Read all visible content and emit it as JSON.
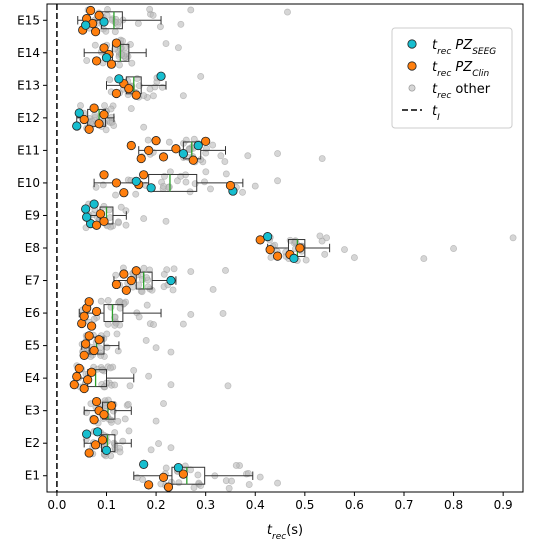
{
  "chart_data": {
    "type": "box-scatter",
    "orientation": "horizontal",
    "xlabel": {
      "main": "t",
      "sub": "rec",
      "rest": "(s)"
    },
    "xlim": [
      -0.02,
      0.94
    ],
    "xticks": [
      0.0,
      0.1,
      0.2,
      0.3,
      0.4,
      0.5,
      0.6,
      0.7,
      0.8,
      0.9
    ],
    "xtick_labels": [
      "0.0",
      "0.1",
      "0.2",
      "0.3",
      "0.4",
      "0.5",
      "0.6",
      "0.7",
      "0.8",
      "0.9"
    ],
    "categories": [
      "E1",
      "E2",
      "E3",
      "E4",
      "E5",
      "E6",
      "E7",
      "E8",
      "E9",
      "E10",
      "E11",
      "E12",
      "E13",
      "E14",
      "E15"
    ],
    "grid": false,
    "legend_position": "top-right",
    "t_I": 0.0,
    "colors": {
      "pz_seeg": "#17becf",
      "pz_clin": "#ff7f0e",
      "other": "#bbbbbb",
      "median": "#2ca02c",
      "box": "#333333",
      "t_I": "#000000"
    },
    "legend": [
      {
        "key": "pz_seeg",
        "main": "t",
        "sub": "rec",
        "rest": " PZ",
        "rest_sub": "SEEG"
      },
      {
        "key": "pz_clin",
        "main": "t",
        "sub": "rec",
        "rest": " PZ",
        "rest_sub": "Clin"
      },
      {
        "key": "other",
        "main": "t",
        "sub": "rec",
        "rest": " other",
        "rest_sub": ""
      },
      {
        "key": "t_I",
        "main": "t",
        "sub": "I",
        "rest": "",
        "rest_sub": ""
      }
    ],
    "boxes": [
      {
        "name": "E1",
        "whislo": 0.155,
        "q1": 0.232,
        "med": 0.262,
        "q3": 0.298,
        "whishi": 0.395
      },
      {
        "name": "E2",
        "whislo": 0.055,
        "q1": 0.09,
        "med": 0.102,
        "q3": 0.117,
        "whishi": 0.15
      },
      {
        "name": "E3",
        "whislo": 0.055,
        "q1": 0.092,
        "med": 0.103,
        "q3": 0.117,
        "whishi": 0.15
      },
      {
        "name": "E4",
        "whislo": 0.04,
        "q1": 0.062,
        "med": 0.078,
        "q3": 0.1,
        "whishi": 0.155
      },
      {
        "name": "E5",
        "whislo": 0.05,
        "q1": 0.065,
        "med": 0.08,
        "q3": 0.095,
        "whishi": 0.125
      },
      {
        "name": "E6",
        "whislo": 0.045,
        "q1": 0.095,
        "med": 0.112,
        "q3": 0.133,
        "whishi": 0.21
      },
      {
        "name": "E7",
        "whislo": 0.115,
        "q1": 0.16,
        "med": 0.175,
        "q3": 0.192,
        "whishi": 0.24
      },
      {
        "name": "E8",
        "whislo": 0.425,
        "q1": 0.467,
        "med": 0.485,
        "q3": 0.5,
        "whishi": 0.55
      },
      {
        "name": "E9",
        "whislo": 0.055,
        "q1": 0.087,
        "med": 0.1,
        "q3": 0.113,
        "whishi": 0.14
      },
      {
        "name": "E10",
        "whislo": 0.075,
        "q1": 0.185,
        "med": 0.228,
        "q3": 0.282,
        "whishi": 0.375
      },
      {
        "name": "E11",
        "whislo": 0.165,
        "q1": 0.255,
        "med": 0.272,
        "q3": 0.29,
        "whishi": 0.34
      },
      {
        "name": "E12",
        "whislo": 0.04,
        "q1": 0.062,
        "med": 0.085,
        "q3": 0.098,
        "whishi": 0.115
      },
      {
        "name": "E13",
        "whislo": 0.1,
        "q1": 0.14,
        "med": 0.155,
        "q3": 0.17,
        "whishi": 0.22
      },
      {
        "name": "E14",
        "whislo": 0.055,
        "q1": 0.112,
        "med": 0.128,
        "q3": 0.145,
        "whishi": 0.18
      },
      {
        "name": "E15",
        "whislo": 0.042,
        "q1": 0.09,
        "med": 0.115,
        "q3": 0.132,
        "whishi": 0.21
      }
    ],
    "highlighted_points": [
      {
        "cat": "E1",
        "x": 0.185,
        "s": 0.28,
        "g": "pz_clin"
      },
      {
        "cat": "E1",
        "x": 0.215,
        "s": 0.05,
        "g": "pz_clin"
      },
      {
        "cat": "E1",
        "x": 0.225,
        "s": 0.35,
        "g": "pz_clin"
      },
      {
        "cat": "E1",
        "x": 0.255,
        "s": -0.05,
        "g": "pz_clin"
      },
      {
        "cat": "E1",
        "x": 0.175,
        "s": -0.35,
        "g": "pz_seeg"
      },
      {
        "cat": "E1",
        "x": 0.245,
        "s": -0.25,
        "g": "pz_seeg"
      },
      {
        "cat": "E2",
        "x": 0.065,
        "s": 0.3,
        "g": "pz_clin"
      },
      {
        "cat": "E2",
        "x": 0.078,
        "s": 0.05,
        "g": "pz_clin"
      },
      {
        "cat": "E2",
        "x": 0.092,
        "s": -0.1,
        "g": "pz_clin"
      },
      {
        "cat": "E2",
        "x": 0.06,
        "s": -0.28,
        "g": "pz_seeg"
      },
      {
        "cat": "E2",
        "x": 0.082,
        "s": -0.35,
        "g": "pz_seeg"
      },
      {
        "cat": "E2",
        "x": 0.1,
        "s": 0.22,
        "g": "pz_seeg"
      },
      {
        "cat": "E3",
        "x": 0.075,
        "s": 0.28,
        "g": "pz_clin"
      },
      {
        "cat": "E3",
        "x": 0.085,
        "s": 0.0,
        "g": "pz_clin"
      },
      {
        "cat": "E3",
        "x": 0.08,
        "s": -0.28,
        "g": "pz_clin"
      },
      {
        "cat": "E3",
        "x": 0.095,
        "s": 0.12,
        "g": "pz_clin"
      },
      {
        "cat": "E3",
        "x": 0.11,
        "s": -0.15,
        "g": "pz_clin"
      },
      {
        "cat": "E4",
        "x": 0.035,
        "s": 0.2,
        "g": "pz_clin"
      },
      {
        "cat": "E4",
        "x": 0.04,
        "s": -0.05,
        "g": "pz_clin"
      },
      {
        "cat": "E4",
        "x": 0.045,
        "s": -0.3,
        "g": "pz_clin"
      },
      {
        "cat": "E4",
        "x": 0.055,
        "s": 0.32,
        "g": "pz_clin"
      },
      {
        "cat": "E4",
        "x": 0.062,
        "s": 0.05,
        "g": "pz_clin"
      },
      {
        "cat": "E4",
        "x": 0.07,
        "s": -0.18,
        "g": "pz_clin"
      },
      {
        "cat": "E5",
        "x": 0.055,
        "s": 0.3,
        "g": "pz_clin"
      },
      {
        "cat": "E5",
        "x": 0.058,
        "s": -0.05,
        "g": "pz_clin"
      },
      {
        "cat": "E5",
        "x": 0.065,
        "s": -0.3,
        "g": "pz_clin"
      },
      {
        "cat": "E5",
        "x": 0.075,
        "s": 0.15,
        "g": "pz_clin"
      },
      {
        "cat": "E5",
        "x": 0.085,
        "s": -0.18,
        "g": "pz_clin"
      },
      {
        "cat": "E6",
        "x": 0.05,
        "s": 0.32,
        "g": "pz_clin"
      },
      {
        "cat": "E6",
        "x": 0.055,
        "s": 0.1,
        "g": "pz_clin"
      },
      {
        "cat": "E6",
        "x": 0.06,
        "s": -0.15,
        "g": "pz_clin"
      },
      {
        "cat": "E6",
        "x": 0.065,
        "s": -0.35,
        "g": "pz_clin"
      },
      {
        "cat": "E6",
        "x": 0.07,
        "s": 0.4,
        "g": "pz_clin"
      },
      {
        "cat": "E6",
        "x": 0.08,
        "s": -0.05,
        "g": "pz_clin"
      },
      {
        "cat": "E7",
        "x": 0.12,
        "s": 0.12,
        "g": "pz_clin"
      },
      {
        "cat": "E7",
        "x": 0.135,
        "s": -0.2,
        "g": "pz_clin"
      },
      {
        "cat": "E7",
        "x": 0.14,
        "s": 0.3,
        "g": "pz_clin"
      },
      {
        "cat": "E7",
        "x": 0.15,
        "s": 0.0,
        "g": "pz_clin"
      },
      {
        "cat": "E7",
        "x": 0.16,
        "s": -0.3,
        "g": "pz_clin"
      },
      {
        "cat": "E7",
        "x": 0.23,
        "s": 0.0,
        "g": "pz_seeg"
      },
      {
        "cat": "E8",
        "x": 0.41,
        "s": -0.25,
        "g": "pz_clin"
      },
      {
        "cat": "E8",
        "x": 0.43,
        "s": 0.05,
        "g": "pz_clin"
      },
      {
        "cat": "E8",
        "x": 0.445,
        "s": 0.25,
        "g": "pz_clin"
      },
      {
        "cat": "E8",
        "x": 0.47,
        "s": 0.2,
        "g": "pz_clin"
      },
      {
        "cat": "E8",
        "x": 0.49,
        "s": 0.0,
        "g": "pz_clin"
      },
      {
        "cat": "E8",
        "x": 0.425,
        "s": -0.35,
        "g": "pz_seeg"
      },
      {
        "cat": "E8",
        "x": 0.478,
        "s": 0.32,
        "g": "pz_seeg"
      },
      {
        "cat": "E9",
        "x": 0.068,
        "s": 0.25,
        "g": "pz_seeg"
      },
      {
        "cat": "E9",
        "x": 0.06,
        "s": 0.05,
        "g": "pz_seeg"
      },
      {
        "cat": "E9",
        "x": 0.058,
        "s": -0.2,
        "g": "pz_seeg"
      },
      {
        "cat": "E9",
        "x": 0.075,
        "s": -0.35,
        "g": "pz_seeg"
      },
      {
        "cat": "E9",
        "x": 0.08,
        "s": 0.3,
        "g": "pz_clin"
      },
      {
        "cat": "E9",
        "x": 0.088,
        "s": -0.05,
        "g": "pz_clin"
      },
      {
        "cat": "E9",
        "x": 0.095,
        "s": 0.18,
        "g": "pz_clin"
      },
      {
        "cat": "E10",
        "x": 0.095,
        "s": -0.25,
        "g": "pz_clin"
      },
      {
        "cat": "E10",
        "x": 0.12,
        "s": 0.0,
        "g": "pz_clin"
      },
      {
        "cat": "E10",
        "x": 0.135,
        "s": 0.3,
        "g": "pz_clin"
      },
      {
        "cat": "E10",
        "x": 0.165,
        "s": 0.05,
        "g": "pz_clin"
      },
      {
        "cat": "E10",
        "x": 0.175,
        "s": -0.25,
        "g": "pz_clin"
      },
      {
        "cat": "E10",
        "x": 0.16,
        "s": -0.05,
        "g": "pz_seeg"
      },
      {
        "cat": "E10",
        "x": 0.19,
        "s": 0.15,
        "g": "pz_seeg"
      },
      {
        "cat": "E10",
        "x": 0.355,
        "s": 0.25,
        "g": "pz_seeg"
      },
      {
        "cat": "E10",
        "x": 0.35,
        "s": 0.08,
        "g": "pz_clin"
      },
      {
        "cat": "E11",
        "x": 0.15,
        "s": -0.15,
        "g": "pz_clin"
      },
      {
        "cat": "E11",
        "x": 0.17,
        "s": 0.25,
        "g": "pz_clin"
      },
      {
        "cat": "E11",
        "x": 0.185,
        "s": 0.0,
        "g": "pz_clin"
      },
      {
        "cat": "E11",
        "x": 0.2,
        "s": -0.3,
        "g": "pz_clin"
      },
      {
        "cat": "E11",
        "x": 0.215,
        "s": 0.2,
        "g": "pz_clin"
      },
      {
        "cat": "E11",
        "x": 0.24,
        "s": -0.05,
        "g": "pz_clin"
      },
      {
        "cat": "E11",
        "x": 0.275,
        "s": 0.3,
        "g": "pz_clin"
      },
      {
        "cat": "E11",
        "x": 0.3,
        "s": -0.28,
        "g": "pz_clin"
      },
      {
        "cat": "E11",
        "x": 0.255,
        "s": 0.1,
        "g": "pz_seeg"
      },
      {
        "cat": "E11",
        "x": 0.285,
        "s": -0.15,
        "g": "pz_seeg"
      },
      {
        "cat": "E12",
        "x": 0.04,
        "s": 0.25,
        "g": "pz_seeg"
      },
      {
        "cat": "E12",
        "x": 0.045,
        "s": -0.15,
        "g": "pz_seeg"
      },
      {
        "cat": "E12",
        "x": 0.055,
        "s": 0.05,
        "g": "pz_clin"
      },
      {
        "cat": "E12",
        "x": 0.065,
        "s": 0.35,
        "g": "pz_clin"
      },
      {
        "cat": "E12",
        "x": 0.075,
        "s": -0.3,
        "g": "pz_clin"
      },
      {
        "cat": "E12",
        "x": 0.085,
        "s": 0.18,
        "g": "pz_clin"
      },
      {
        "cat": "E12",
        "x": 0.095,
        "s": -0.1,
        "g": "pz_clin"
      },
      {
        "cat": "E13",
        "x": 0.12,
        "s": 0.25,
        "g": "pz_clin"
      },
      {
        "cat": "E13",
        "x": 0.135,
        "s": -0.05,
        "g": "pz_clin"
      },
      {
        "cat": "E13",
        "x": 0.145,
        "s": 0.1,
        "g": "pz_clin"
      },
      {
        "cat": "E13",
        "x": 0.16,
        "s": 0.3,
        "g": "pz_clin"
      },
      {
        "cat": "E13",
        "x": 0.125,
        "s": -0.2,
        "g": "pz_seeg"
      },
      {
        "cat": "E13",
        "x": 0.21,
        "s": -0.28,
        "g": "pz_seeg"
      },
      {
        "cat": "E14",
        "x": 0.08,
        "s": 0.25,
        "g": "pz_clin"
      },
      {
        "cat": "E14",
        "x": 0.095,
        "s": -0.15,
        "g": "pz_clin"
      },
      {
        "cat": "E14",
        "x": 0.105,
        "s": 0.05,
        "g": "pz_clin"
      },
      {
        "cat": "E14",
        "x": 0.11,
        "s": 0.35,
        "g": "pz_clin"
      },
      {
        "cat": "E14",
        "x": 0.12,
        "s": -0.3,
        "g": "pz_clin"
      },
      {
        "cat": "E14",
        "x": 0.1,
        "s": 0.15,
        "g": "pz_seeg"
      },
      {
        "cat": "E15",
        "x": 0.052,
        "s": 0.3,
        "g": "pz_clin"
      },
      {
        "cat": "E15",
        "x": 0.06,
        "s": -0.05,
        "g": "pz_clin"
      },
      {
        "cat": "E15",
        "x": 0.068,
        "s": -0.3,
        "g": "pz_clin"
      },
      {
        "cat": "E15",
        "x": 0.072,
        "s": 0.1,
        "g": "pz_clin"
      },
      {
        "cat": "E15",
        "x": 0.078,
        "s": 0.35,
        "g": "pz_clin"
      },
      {
        "cat": "E15",
        "x": 0.085,
        "s": -0.15,
        "g": "pz_clin"
      },
      {
        "cat": "E15",
        "x": 0.058,
        "s": 0.15,
        "g": "pz_seeg"
      },
      {
        "cat": "E15",
        "x": 0.095,
        "s": 0.05,
        "g": "pz_seeg"
      }
    ],
    "other_outliers": [
      {
        "cat": "E15",
        "x": 0.465
      },
      {
        "cat": "E15",
        "x": 0.25
      },
      {
        "cat": "E15",
        "x": 0.27
      },
      {
        "cat": "E14",
        "x": 0.22
      },
      {
        "cat": "E14",
        "x": 0.245
      },
      {
        "cat": "E13",
        "x": 0.255
      },
      {
        "cat": "E13",
        "x": 0.29
      },
      {
        "cat": "E12",
        "x": 0.15
      },
      {
        "cat": "E12",
        "x": 0.175
      },
      {
        "cat": "E11",
        "x": 0.445
      },
      {
        "cat": "E11",
        "x": 0.535
      },
      {
        "cat": "E11",
        "x": 0.385
      },
      {
        "cat": "E10",
        "x": 0.445
      },
      {
        "cat": "E10",
        "x": 0.4
      },
      {
        "cat": "E9",
        "x": 0.175
      },
      {
        "cat": "E9",
        "x": 0.22
      },
      {
        "cat": "E8",
        "x": 0.6
      },
      {
        "cat": "E8",
        "x": 0.74
      },
      {
        "cat": "E8",
        "x": 0.8
      },
      {
        "cat": "E8",
        "x": 0.92
      },
      {
        "cat": "E8",
        "x": 0.58
      },
      {
        "cat": "E7",
        "x": 0.315
      },
      {
        "cat": "E7",
        "x": 0.34
      },
      {
        "cat": "E7",
        "x": 0.27
      },
      {
        "cat": "E6",
        "x": 0.255
      },
      {
        "cat": "E6",
        "x": 0.27
      },
      {
        "cat": "E6",
        "x": 0.335
      },
      {
        "cat": "E5",
        "x": 0.18
      },
      {
        "cat": "E5",
        "x": 0.2
      },
      {
        "cat": "E5",
        "x": 0.23
      },
      {
        "cat": "E4",
        "x": 0.23
      },
      {
        "cat": "E4",
        "x": 0.345
      },
      {
        "cat": "E4",
        "x": 0.185
      },
      {
        "cat": "E3",
        "x": 0.2
      },
      {
        "cat": "E3",
        "x": 0.215
      },
      {
        "cat": "E2",
        "x": 0.19
      },
      {
        "cat": "E2",
        "x": 0.205
      },
      {
        "cat": "E2",
        "x": 0.23
      },
      {
        "cat": "E1",
        "x": 0.445
      },
      {
        "cat": "E1",
        "x": 0.41
      }
    ],
    "other_per_category": 26
  }
}
